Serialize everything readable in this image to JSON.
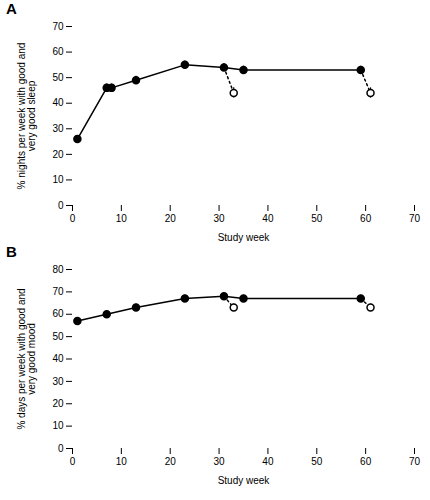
{
  "chart_data": [
    {
      "type": "line",
      "title": "A",
      "xlabel": "Study week",
      "ylabel": "% nights per week with good and\nvery good sleep",
      "xlim": [
        0,
        70
      ],
      "xticks": [
        0,
        10,
        20,
        30,
        40,
        50,
        60,
        70
      ],
      "ylim": [
        0,
        70
      ],
      "yticks": [
        0,
        10,
        20,
        30,
        40,
        50,
        60,
        70
      ],
      "grid": false,
      "series": [
        {
          "type": "line",
          "color": "#000000",
          "marker": "circle",
          "line_style": "solid",
          "x": [
            1,
            7,
            8,
            13,
            23,
            31,
            35,
            59
          ],
          "values": [
            26,
            46,
            46,
            49,
            55,
            54,
            53,
            53
          ],
          "yerr": [
            0.5,
            1.5,
            1.5,
            1.5,
            1.5,
            1.5,
            1.5,
            1.5
          ]
        },
        {
          "type": "line",
          "color": "#000000",
          "marker": "none",
          "line_style": "dotted",
          "x": [
            31,
            33
          ],
          "values": [
            54,
            44
          ]
        },
        {
          "type": "line",
          "color": "#000000",
          "marker": "none",
          "line_style": "dotted",
          "x": [
            59,
            61
          ],
          "values": [
            53,
            44
          ]
        },
        {
          "type": "scatter",
          "color": "#000000",
          "marker": "open_circle",
          "line_style": "none",
          "x": [
            33,
            61
          ],
          "values": [
            44,
            44
          ],
          "yerr": [
            2.0,
            2.0
          ]
        }
      ]
    },
    {
      "type": "line",
      "title": "B",
      "xlabel": "Study week",
      "ylabel": "% days per week with good and\nvery good mood",
      "xlim": [
        0,
        70
      ],
      "xticks": [
        0,
        10,
        20,
        30,
        40,
        50,
        60,
        70
      ],
      "ylim": [
        0,
        80
      ],
      "yticks": [
        0,
        10,
        20,
        30,
        40,
        50,
        60,
        70,
        80
      ],
      "grid": false,
      "series": [
        {
          "type": "line",
          "color": "#000000",
          "marker": "circle",
          "line_style": "solid",
          "x": [
            1,
            7,
            13,
            23,
            31,
            35,
            59
          ],
          "values": [
            57,
            60,
            63,
            67,
            68,
            67,
            67
          ],
          "yerr": [
            0.8,
            1.0,
            1.5,
            1.5,
            1.5,
            1.5,
            1.5
          ]
        },
        {
          "type": "line",
          "color": "#000000",
          "marker": "none",
          "line_style": "dotted",
          "x": [
            31,
            33
          ],
          "values": [
            68,
            63
          ]
        },
        {
          "type": "line",
          "color": "#000000",
          "marker": "none",
          "line_style": "dotted",
          "x": [
            59,
            61
          ],
          "values": [
            67,
            63
          ]
        },
        {
          "type": "scatter",
          "color": "#000000",
          "marker": "open_circle",
          "line_style": "none",
          "x": [
            33,
            61
          ],
          "values": [
            63,
            63
          ],
          "yerr": [
            1.5,
            1.5
          ]
        }
      ]
    }
  ]
}
